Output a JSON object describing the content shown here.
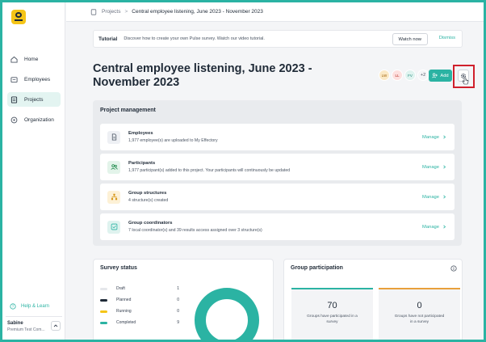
{
  "sidebar": {
    "logo_icon": "logo-icon",
    "items": [
      {
        "label": "Home",
        "icon": "home-icon"
      },
      {
        "label": "Employees",
        "icon": "employees-icon"
      },
      {
        "label": "Projects",
        "icon": "projects-icon",
        "active": true
      },
      {
        "label": "Organization",
        "icon": "organization-icon"
      }
    ],
    "help_label": "Help & Learn",
    "user": {
      "name": "Sabine",
      "org": "Premium Test Com..."
    }
  },
  "breadcrumb": {
    "link": "Projects",
    "separator": ">",
    "current": "Central employee listening, June 2023 - November 2023"
  },
  "tutorial": {
    "label": "Tutorial",
    "text": "Discover how to create your own Pulse survey. Watch our video tutorial.",
    "watch_label": "Watch now",
    "dismiss_label": "Dismiss"
  },
  "header": {
    "title": "Central employee listening, June 2023 - November 2023",
    "avatars": [
      {
        "initials": "LW",
        "bg": "#fbe9c6",
        "fg": "#a16207"
      },
      {
        "initials": "LL",
        "bg": "#fde0df",
        "fg": "#b42318"
      },
      {
        "initials": "FV",
        "bg": "#dff3ef",
        "fg": "#1f8a7c"
      }
    ],
    "more_count": "+2",
    "add_label": "Add"
  },
  "project_management": {
    "title": "Project management",
    "rows": [
      {
        "title": "Employees",
        "subtitle": "1,977 employee(s) are uploaded to My Effectory",
        "action": "Manage",
        "icon": "document-icon",
        "icon_bg": "#eef0f4",
        "icon_color": "#4b5563"
      },
      {
        "title": "Participants",
        "subtitle": "1,977 participant(s) added to this project. Your participants will continuously be updated",
        "action": "Manage",
        "icon": "participants-icon",
        "icon_bg": "#e3f4ea",
        "icon_color": "#1f8a4c"
      },
      {
        "title": "Group structures",
        "subtitle": "4 structure(s) created",
        "action": "Manage",
        "icon": "structure-icon",
        "icon_bg": "#fdf1d6",
        "icon_color": "#d4920f"
      },
      {
        "title": "Group coordinators",
        "subtitle": "7 local coordinator(s) and 39 results access assigned over 3 structure(s)",
        "action": "Manage",
        "icon": "coordinator-check-icon",
        "icon_bg": "#dff3ef",
        "icon_color": "#2bb3a3"
      }
    ]
  },
  "survey_status": {
    "title": "Survey status",
    "legend": [
      {
        "label": "Draft",
        "value": "1",
        "color": "#e5e7eb"
      },
      {
        "label": "Planned",
        "value": "0",
        "color": "#1f2a37"
      },
      {
        "label": "Running",
        "value": "0",
        "color": "#f5c518"
      },
      {
        "label": "Completed",
        "value": "9",
        "color": "#2bb3a3"
      }
    ]
  },
  "group_participation": {
    "title": "Group participation",
    "stats": [
      {
        "value": "70",
        "label": "Groups have participated in a survey"
      },
      {
        "value": "0",
        "label": "Groups have not participated in a survey"
      }
    ]
  },
  "colors": {
    "accent": "#2bb3a3",
    "highlight": "#d0202c"
  }
}
